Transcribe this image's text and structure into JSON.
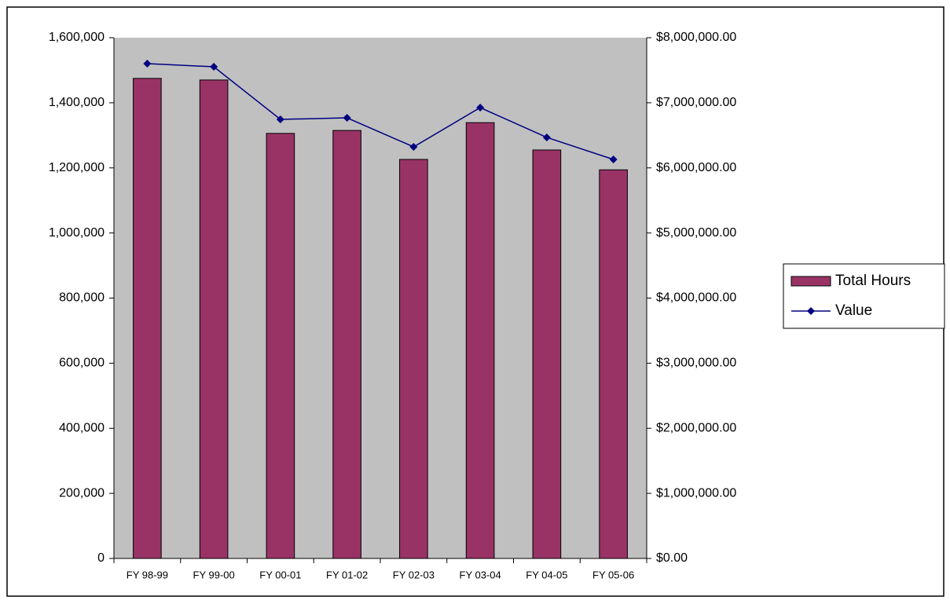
{
  "chart_data": {
    "type": "bar",
    "categories": [
      "FY 98-99",
      "FY 99-00",
      "FY 00-01",
      "FY 01-02",
      "FY 02-03",
      "FY 03-04",
      "FY 04-05",
      "FY 05-06"
    ],
    "series": [
      {
        "name": "Total Hours",
        "type": "bar",
        "color": "#993366",
        "values": [
          1475000,
          1470000,
          1306000,
          1315000,
          1226000,
          1339000,
          1255000,
          1194000
        ]
      },
      {
        "name": "Value",
        "type": "line",
        "axis": "y2",
        "color": "#000080",
        "values": [
          7602000,
          7553000,
          6745000,
          6769000,
          6323000,
          6926000,
          6468000,
          6130000
        ]
      }
    ],
    "ylim": [
      0,
      1600000
    ],
    "yticks": [
      0,
      {
        "value": 200000,
        "label": "200,000"
      },
      {
        "value": 400000,
        "label": "400,000"
      },
      {
        "value": 600000,
        "label": "600,000"
      },
      {
        "value": 800000,
        "label": "800,000"
      },
      {
        "value": 1000000,
        "label": "1,000,000"
      },
      {
        "value": 1200000,
        "label": "1,200,000"
      },
      {
        "value": 1400000,
        "label": "1,400,000"
      },
      {
        "value": 1600000,
        "label": "1,600,000"
      }
    ],
    "y2lim": [
      0,
      8000000
    ],
    "y2ticks": [
      {
        "value": 0,
        "label": "$0.00"
      },
      {
        "value": 1000000,
        "label": "$1,000,000.00"
      },
      {
        "value": 2000000,
        "label": "$2,000,000.00"
      },
      {
        "value": 3000000,
        "label": "$3,000,000.00"
      },
      {
        "value": 4000000,
        "label": "$4,000,000.00"
      },
      {
        "value": 5000000,
        "label": "$5,000,000.00"
      },
      {
        "value": 6000000,
        "label": "$6,000,000.00"
      },
      {
        "value": 7000000,
        "label": "$7,000,000.00"
      },
      {
        "value": 8000000,
        "label": "$8,000,000.00"
      }
    ],
    "plot_background": "#c0c0c0",
    "grid": false,
    "legend": "right"
  }
}
